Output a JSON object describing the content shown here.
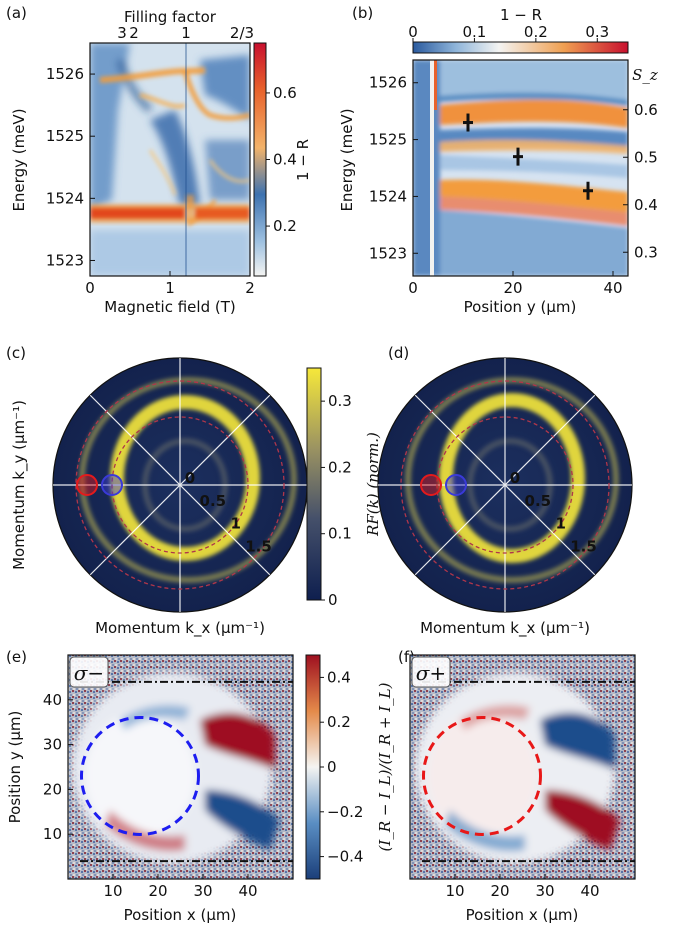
{
  "figure": {
    "panel_labels": [
      "(a)",
      "(b)",
      "(c)",
      "(d)",
      "(e)",
      "(f)"
    ],
    "colors": {
      "low": "#1f4e8c",
      "mid": "#f2f2f0",
      "high": "#c8102e",
      "orange": "#f39c3c",
      "viridis_dark": "#16285a",
      "viridis_yellow": "#f6e83a",
      "ring_dashed": "#b0364a",
      "marker_red": "#e41a1c",
      "marker_blue": "#3a3ad8",
      "dash_blue": "#1d1df0",
      "dash_red": "#e81818"
    }
  },
  "chart_data": [
    {
      "panel": "(a)",
      "type": "heatmap",
      "title": "",
      "top_axis_label": "Filling factor",
      "top_ticks": [
        "3",
        "2",
        "1",
        "2/3"
      ],
      "top_tick_values": [
        0.4,
        0.55,
        1.2,
        1.9
      ],
      "xlabel": "Magnetic field (T)",
      "ylabel": "Energy (meV)",
      "xlim": [
        0,
        2
      ],
      "ylim": [
        1522.75,
        1526.5
      ],
      "xticks": [
        "0",
        "1",
        "2"
      ],
      "yticks": [
        "1523",
        "1524",
        "1525",
        "1526"
      ],
      "colorbar": {
        "label": "1 − R",
        "range": [
          0.05,
          0.75
        ],
        "ticks": [
          "0.2",
          "0.4",
          "0.6"
        ]
      },
      "bands": [
        {
          "name": "",
          "energy_at_B0": 1523.8,
          "intensity": 0.7
        },
        {
          "name": "",
          "energy_at_B0": 1526.0,
          "intensity": 0.45
        }
      ]
    },
    {
      "panel": "(b)",
      "type": "heatmap",
      "title": "",
      "xlabel": "Position y (μm)",
      "ylabel": "Energy (meV)",
      "y2label": "S_z",
      "xlim": [
        0,
        43
      ],
      "ylim": [
        1522.6,
        1526.4
      ],
      "xticks": [
        "0",
        "20",
        "40"
      ],
      "yticks": [
        "1523",
        "1524",
        "1525",
        "1526"
      ],
      "y2ticks": [
        "0.6",
        "0.5",
        "0.4",
        "0.3"
      ],
      "y2_values": [
        0.6,
        0.5,
        0.4,
        0.3
      ],
      "colorbar": {
        "label": "1 − R",
        "range": [
          0,
          0.35
        ],
        "ticks": [
          "0",
          "0.1",
          "0.2",
          "0.3"
        ]
      },
      "markers": [
        {
          "x": 11,
          "y": 1525.3
        },
        {
          "x": 21,
          "y": 1524.7
        },
        {
          "x": 35,
          "y": 1524.1
        }
      ]
    },
    {
      "panel": "(c)",
      "type": "heatmap",
      "title": "",
      "xlabel": "Momentum k_x (μm⁻¹)",
      "ylabel": "Momentum k_y (μm⁻¹)",
      "radial_labels": [
        "0",
        "0.5",
        "1",
        "1.5"
      ],
      "radial_values": [
        0,
        0.5,
        1,
        1.5
      ],
      "rings": [
        0.55,
        1.05,
        1.4
      ],
      "colorbar": {
        "label": "RF(k) (norm.)",
        "range": [
          0,
          0.35
        ],
        "ticks": [
          "0",
          "0.1",
          "0.2",
          "0.3"
        ]
      }
    },
    {
      "panel": "(d)",
      "type": "heatmap",
      "title": "",
      "xlabel": "Momentum k_x (μm⁻¹)",
      "ylabel": "",
      "radial_labels": [
        "0",
        "0.5",
        "1",
        "1.5"
      ],
      "radial_values": [
        0,
        0.5,
        1,
        1.5
      ],
      "rings": [
        0.55,
        1.05,
        1.4
      ]
    },
    {
      "panel": "(e)",
      "type": "heatmap",
      "title": "",
      "badge": "σ−",
      "xlabel": "Position x (μm)",
      "ylabel": "Position y (μm)",
      "xlim": [
        0,
        50
      ],
      "ylim": [
        0,
        50
      ],
      "xticks": [
        "10",
        "20",
        "30",
        "40"
      ],
      "yticks": [
        "10",
        "20",
        "30",
        "40"
      ],
      "colorbar": {
        "label": "(I_R − I_L)/(I_R + I_L)",
        "range": [
          -0.5,
          0.5
        ],
        "ticks": [
          "−0.4",
          "−0.2",
          "0",
          "0.2",
          "0.4"
        ]
      },
      "dashed_circle": {
        "cx": 16,
        "cy": 23,
        "r": 13
      },
      "hlines_y": [
        4,
        44
      ]
    },
    {
      "panel": "(f)",
      "type": "heatmap",
      "title": "",
      "badge": "σ+",
      "xlabel": "Position x (μm)",
      "ylabel": "",
      "xlim": [
        0,
        50
      ],
      "ylim": [
        0,
        50
      ],
      "xticks": [
        "10",
        "20",
        "30",
        "40"
      ],
      "yticks": [],
      "dashed_circle": {
        "cx": 16,
        "cy": 23,
        "r": 13
      },
      "hlines_y": [
        4,
        44
      ]
    }
  ]
}
